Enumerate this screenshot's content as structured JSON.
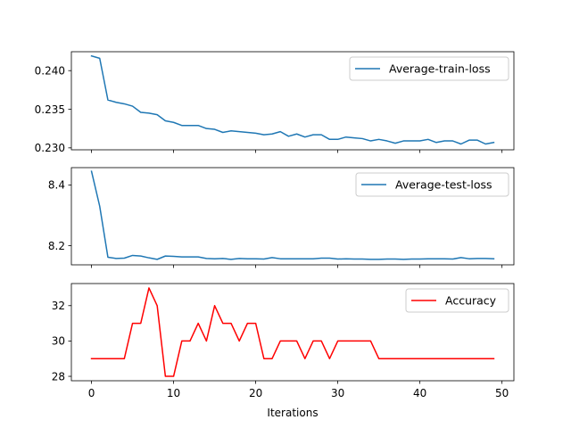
{
  "chart_data": [
    {
      "type": "line",
      "xlabel": "",
      "ylabel": "",
      "xlim": [
        -2.45,
        51.45
      ],
      "ylim": [
        0.22975,
        0.24245
      ],
      "yticks": [
        0.23,
        0.235,
        0.24
      ],
      "ytick_labels": [
        "0.230",
        "0.235",
        "0.240"
      ],
      "xticks": [
        0,
        10,
        20,
        30,
        40,
        50
      ],
      "xtick_labels": [
        "",
        "",
        "",
        "",
        "",
        ""
      ],
      "legend_position": "upper right",
      "series": [
        {
          "name": "Average-train-loss",
          "color": "#1f77b4",
          "x": [
            0,
            1,
            2,
            3,
            4,
            5,
            6,
            7,
            8,
            9,
            10,
            11,
            12,
            13,
            14,
            15,
            16,
            17,
            18,
            19,
            20,
            21,
            22,
            23,
            24,
            25,
            26,
            27,
            28,
            29,
            30,
            31,
            32,
            33,
            34,
            35,
            36,
            37,
            38,
            39,
            40,
            41,
            42,
            43,
            44,
            45,
            46,
            47,
            48,
            49
          ],
          "y": [
            0.2419,
            0.2416,
            0.2362,
            0.2359,
            0.2357,
            0.2354,
            0.2346,
            0.2345,
            0.2343,
            0.2335,
            0.2333,
            0.2329,
            0.2329,
            0.2329,
            0.2325,
            0.2324,
            0.232,
            0.2322,
            0.2321,
            0.232,
            0.2319,
            0.2317,
            0.2318,
            0.2321,
            0.2315,
            0.2318,
            0.2314,
            0.2317,
            0.2317,
            0.2311,
            0.2311,
            0.2314,
            0.2313,
            0.2312,
            0.2309,
            0.2311,
            0.2309,
            0.2306,
            0.2309,
            0.2309,
            0.2309,
            0.2311,
            0.2307,
            0.2309,
            0.2309,
            0.2305,
            0.231,
            0.231,
            0.2305,
            0.2307
          ]
        }
      ]
    },
    {
      "type": "line",
      "xlabel": "",
      "ylabel": "",
      "xlim": [
        -2.45,
        51.45
      ],
      "ylim": [
        8.137,
        8.457
      ],
      "yticks": [
        8.2,
        8.4
      ],
      "ytick_labels": [
        "8.2",
        "8.4"
      ],
      "xticks": [
        0,
        10,
        20,
        30,
        40,
        50
      ],
      "xtick_labels": [
        "",
        "",
        "",
        "",
        "",
        ""
      ],
      "legend_position": "upper right",
      "series": [
        {
          "name": "Average-test-loss",
          "color": "#1f77b4",
          "x": [
            0,
            1,
            2,
            3,
            4,
            5,
            6,
            7,
            8,
            9,
            10,
            11,
            12,
            13,
            14,
            15,
            16,
            17,
            18,
            19,
            20,
            21,
            22,
            23,
            24,
            25,
            26,
            27,
            28,
            29,
            30,
            31,
            32,
            33,
            34,
            35,
            36,
            37,
            38,
            39,
            40,
            41,
            42,
            43,
            44,
            45,
            46,
            47,
            48,
            49
          ],
          "y": [
            8.445,
            8.33,
            8.162,
            8.158,
            8.159,
            8.168,
            8.166,
            8.16,
            8.155,
            8.166,
            8.165,
            8.163,
            8.163,
            8.163,
            8.158,
            8.157,
            8.158,
            8.155,
            8.158,
            8.157,
            8.157,
            8.156,
            8.161,
            8.157,
            8.157,
            8.157,
            8.157,
            8.157,
            8.159,
            8.159,
            8.156,
            8.157,
            8.156,
            8.156,
            8.155,
            8.155,
            8.156,
            8.156,
            8.155,
            8.156,
            8.156,
            8.157,
            8.157,
            8.157,
            8.156,
            8.161,
            8.157,
            8.158,
            8.158,
            8.157
          ]
        }
      ]
    },
    {
      "type": "line",
      "xlabel": "Iterations",
      "ylabel": "",
      "xlim": [
        -2.45,
        51.45
      ],
      "ylim": [
        27.75,
        33.25
      ],
      "yticks": [
        28,
        30,
        32
      ],
      "ytick_labels": [
        "28",
        "30",
        "32"
      ],
      "xticks": [
        0,
        10,
        20,
        30,
        40,
        50
      ],
      "xtick_labels": [
        "0",
        "10",
        "20",
        "30",
        "40",
        "50"
      ],
      "legend_position": "upper right",
      "series": [
        {
          "name": "Accuracy",
          "color": "#ff0000",
          "x": [
            0,
            1,
            2,
            3,
            4,
            5,
            6,
            7,
            8,
            9,
            10,
            11,
            12,
            13,
            14,
            15,
            16,
            17,
            18,
            19,
            20,
            21,
            22,
            23,
            24,
            25,
            26,
            27,
            28,
            29,
            30,
            31,
            32,
            33,
            34,
            35,
            36,
            37,
            38,
            39,
            40,
            41,
            42,
            43,
            44,
            45,
            46,
            47,
            48,
            49
          ],
          "y": [
            29,
            29,
            29,
            29,
            29,
            31,
            31,
            33,
            32,
            28,
            28,
            30,
            30,
            31,
            30,
            32,
            31,
            31,
            30,
            31,
            31,
            29,
            29,
            30,
            30,
            30,
            29,
            30,
            30,
            29,
            30,
            30,
            30,
            30,
            30,
            29,
            29,
            29,
            29,
            29,
            29,
            29,
            29,
            29,
            29,
            29,
            29,
            29,
            29,
            29
          ]
        }
      ]
    }
  ]
}
